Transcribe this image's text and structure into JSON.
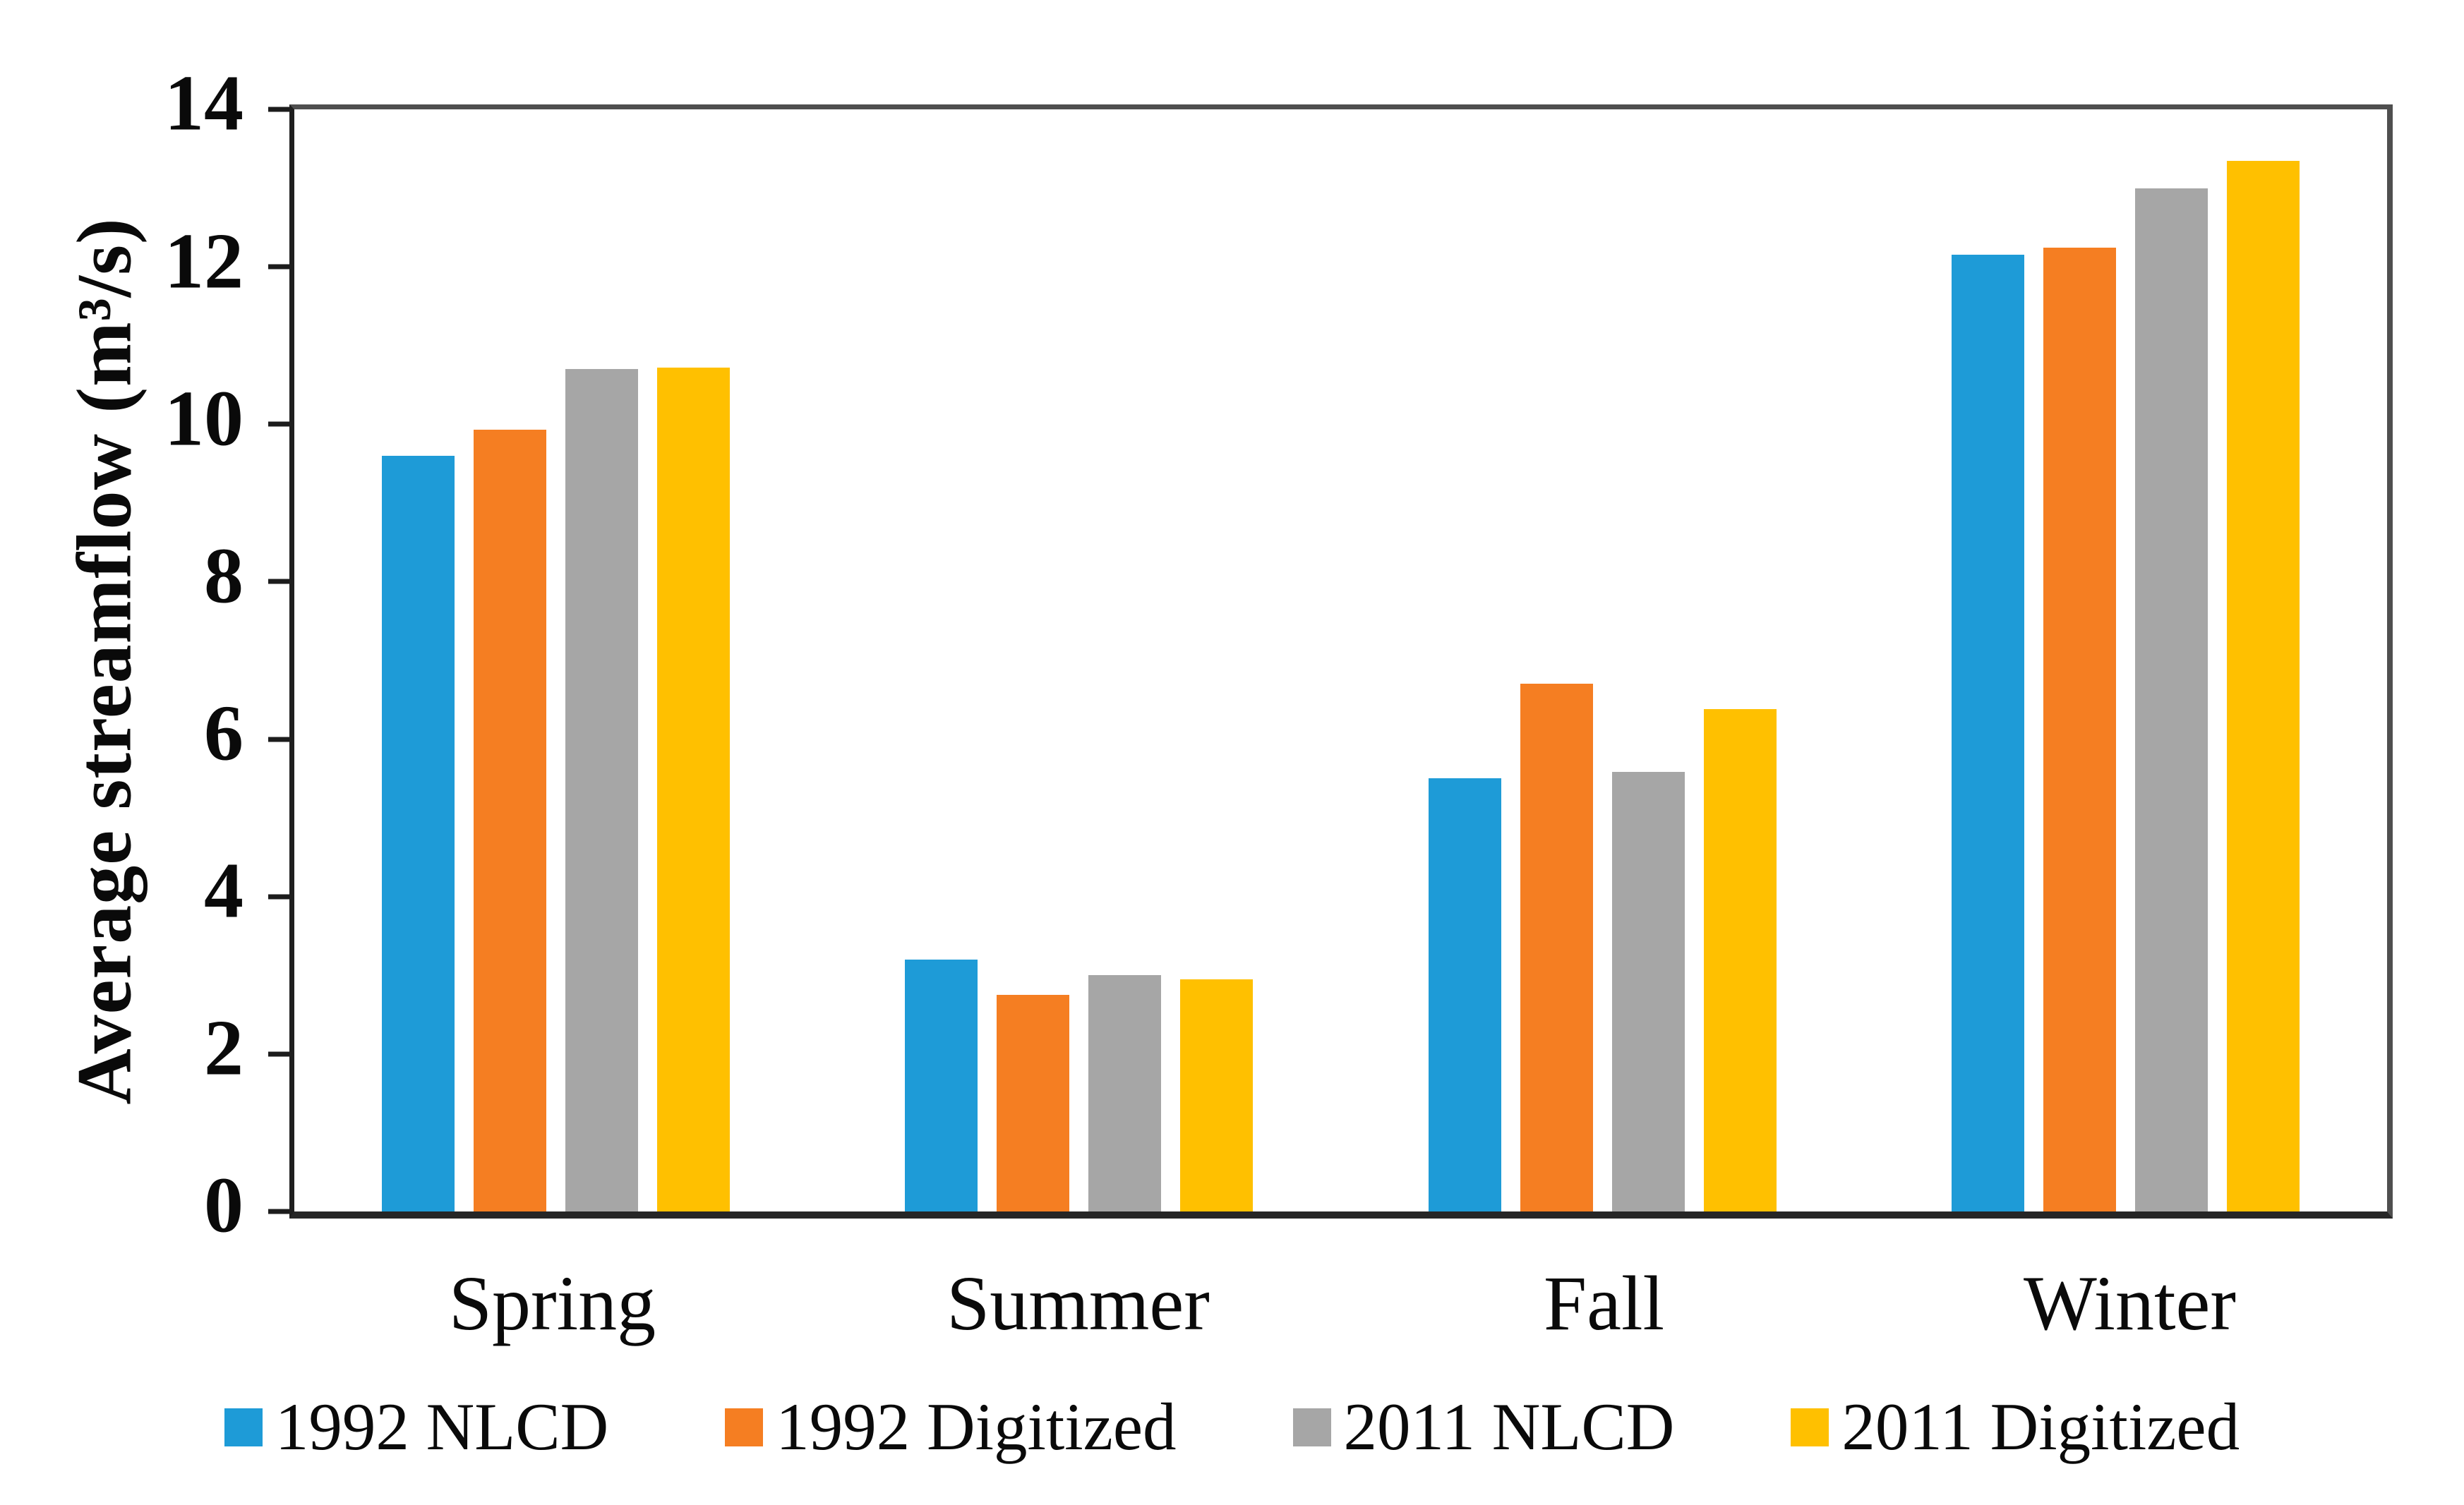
{
  "chart_data": {
    "type": "bar",
    "categories": [
      "Spring",
      "Summer",
      "Fall",
      "Winter"
    ],
    "series": [
      {
        "name": "1992 NLCD",
        "color": "#1E9BD7",
        "values": [
          9.6,
          3.2,
          5.5,
          12.15
        ]
      },
      {
        "name": "1992 Digitized",
        "color": "#F57E22",
        "values": [
          9.93,
          2.75,
          6.7,
          12.24
        ]
      },
      {
        "name": "2011 NLCD",
        "color": "#A6A6A6",
        "values": [
          10.7,
          3.0,
          5.58,
          13.0
        ]
      },
      {
        "name": "2011 Digitized",
        "color": "#FFC000",
        "values": [
          10.72,
          2.95,
          6.38,
          13.35
        ]
      }
    ],
    "ylabel": "Average streamflow (m³/s)",
    "ylim": [
      0,
      14
    ],
    "yticks": [
      0,
      2,
      4,
      6,
      8,
      10,
      12,
      14
    ],
    "grid": false,
    "legend_position": "bottom",
    "axis_color": "#262626",
    "text_color": "#0a0a0a"
  }
}
